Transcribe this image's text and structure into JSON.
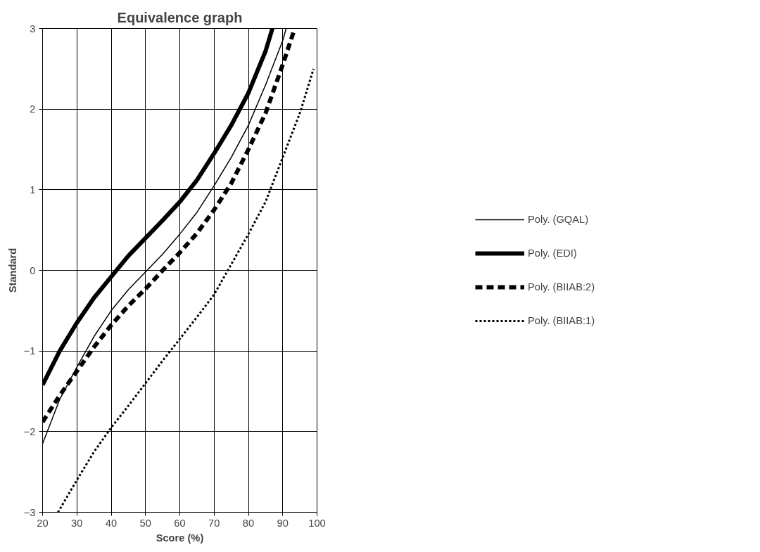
{
  "chart_data": {
    "type": "line",
    "title": "Equivalence graph",
    "xlabel": "Score (%)",
    "ylabel": "Standard",
    "xlim": [
      20,
      100
    ],
    "ylim": [
      -3,
      3
    ],
    "xticks": [
      20,
      30,
      40,
      50,
      60,
      70,
      80,
      90,
      100
    ],
    "yticks": [
      -3,
      -2,
      -1,
      0,
      1,
      2,
      3
    ],
    "grid": true,
    "legend": "right",
    "marker": "none",
    "series": [
      {
        "name": "Poly. (GQAL)",
        "color": "#000000",
        "line_style": "solid",
        "x": [
          20,
          25,
          30,
          35,
          40,
          45,
          50,
          55,
          60,
          65,
          70,
          75,
          80,
          85,
          90,
          91
        ],
        "values": [
          -2.15,
          -1.6,
          -1.2,
          -0.82,
          -0.5,
          -0.24,
          -0.02,
          0.2,
          0.45,
          0.72,
          1.05,
          1.4,
          1.8,
          2.3,
          2.85,
          3
        ]
      },
      {
        "name": "Poly. (EDI)",
        "color": "#000000",
        "line_style": "solid",
        "x": [
          20,
          25,
          30,
          35,
          40,
          45,
          50,
          55,
          60,
          65,
          70,
          75,
          80,
          85,
          87
        ],
        "values": [
          -1.42,
          -1.0,
          -0.65,
          -0.34,
          -0.08,
          0.18,
          0.4,
          0.62,
          0.85,
          1.12,
          1.45,
          1.8,
          2.2,
          2.72,
          3
        ]
      },
      {
        "name": "Poly. (BIIAB:2)",
        "color": "#000000",
        "line_style": "dashed",
        "x": [
          20,
          25,
          30,
          35,
          40,
          45,
          50,
          55,
          60,
          65,
          70,
          75,
          80,
          85,
          90,
          93.5
        ],
        "values": [
          -1.88,
          -1.55,
          -1.25,
          -0.95,
          -0.68,
          -0.44,
          -0.23,
          0.0,
          0.22,
          0.46,
          0.75,
          1.08,
          1.5,
          1.95,
          2.55,
          3
        ]
      },
      {
        "name": "Poly. (BIIAB:1)",
        "color": "#000000",
        "line_style": "dotted",
        "x": [
          24.5,
          30,
          35,
          40,
          45,
          50,
          55,
          60,
          65,
          70,
          74,
          80,
          85,
          90,
          95,
          99
        ],
        "values": [
          -3,
          -2.6,
          -2.25,
          -1.95,
          -1.68,
          -1.4,
          -1.12,
          -0.85,
          -0.58,
          -0.3,
          0,
          0.45,
          0.85,
          1.4,
          1.95,
          2.5
        ]
      }
    ]
  }
}
